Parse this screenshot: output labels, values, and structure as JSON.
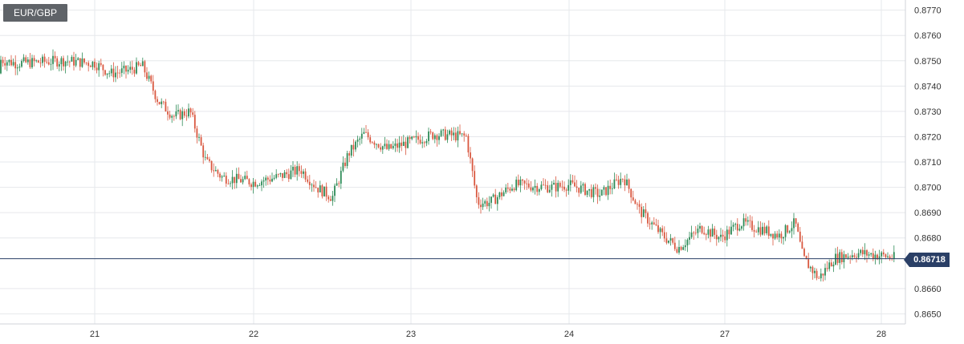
{
  "header": {
    "symbol": "EUR/GBP"
  },
  "colors": {
    "up": "#2e8b57",
    "down": "#d9573f",
    "grid": "#e6e8ec",
    "price_line": "#2a3f66",
    "price_tag": "#2a3f66"
  },
  "chart_data": {
    "type": "candlestick",
    "title": "EUR/GBP",
    "x_ticks": [
      "21",
      "22",
      "23",
      "24",
      "27",
      "28"
    ],
    "y_ticks": [
      "0.8650",
      "0.8660",
      "0.8680",
      "0.8690",
      "0.8700",
      "0.8710",
      "0.8720",
      "0.8730",
      "0.8740",
      "0.8750",
      "0.8760",
      "0.8770"
    ],
    "ylim": [
      0.8646,
      0.8774
    ],
    "grid": true,
    "current_price": 0.86718,
    "current_price_label": "0.86718",
    "path_points": [
      [
        "20",
        0.8745
      ],
      [
        "20.05",
        0.8763
      ],
      [
        "20.15",
        0.8761
      ],
      [
        "20.3",
        0.8752
      ],
      [
        "20.5",
        0.8749
      ],
      [
        "20.8",
        0.875
      ],
      [
        "21",
        0.8749
      ],
      [
        "21.1",
        0.8745
      ],
      [
        "21.2",
        0.8746
      ],
      [
        "21.3",
        0.8748
      ],
      [
        "21.4",
        0.8734
      ],
      [
        "21.5",
        0.8728
      ],
      [
        "21.6",
        0.873
      ],
      [
        "21.7",
        0.871
      ],
      [
        "21.8",
        0.8704
      ],
      [
        "22",
        0.8702
      ],
      [
        "22.15",
        0.8704
      ],
      [
        "22.3",
        0.8707
      ],
      [
        "22.4",
        0.87
      ],
      [
        "22.5",
        0.8696
      ],
      [
        "22.6",
        0.8713
      ],
      [
        "22.7",
        0.8721
      ],
      [
        "22.85",
        0.8715
      ],
      [
        "23",
        0.8718
      ],
      [
        "23.15",
        0.8721
      ],
      [
        "23.35",
        0.872
      ],
      [
        "23.42",
        0.8694
      ],
      [
        "23.5",
        0.8694
      ],
      [
        "23.65",
        0.8701
      ],
      [
        "23.9",
        0.87
      ],
      [
        "24",
        0.8701
      ],
      [
        "24.2",
        0.8697
      ],
      [
        "24.35",
        0.8704
      ],
      [
        "24.45",
        0.8691
      ],
      [
        "24.6",
        0.8681
      ],
      [
        "24.7",
        0.8676
      ],
      [
        "24.85",
        0.8684
      ],
      [
        "25",
        0.868
      ],
      [
        "27.1",
        0.8686
      ],
      [
        "27.2",
        0.8684
      ],
      [
        "27.35",
        0.8681
      ],
      [
        "27.45",
        0.8686
      ],
      [
        "27.5",
        0.8672
      ],
      [
        "27.6",
        0.8664
      ],
      [
        "27.7",
        0.8672
      ],
      [
        "27.85",
        0.8674
      ],
      [
        "28",
        0.8673
      ],
      [
        "28.1",
        0.8672
      ]
    ]
  }
}
